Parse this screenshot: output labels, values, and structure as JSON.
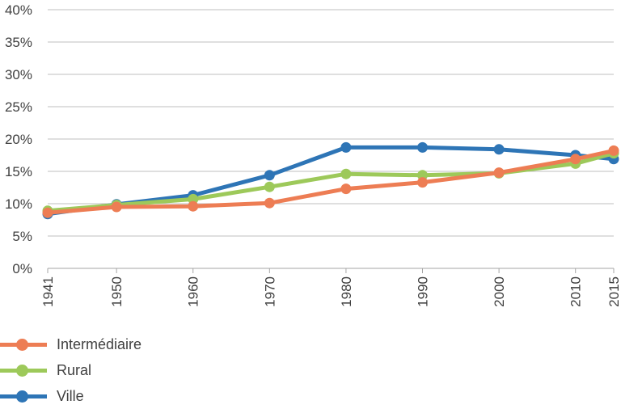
{
  "chart_data": {
    "type": "line",
    "x": [
      "1941",
      "1950",
      "1960",
      "1970",
      "1980",
      "1990",
      "2000",
      "2010",
      "2015"
    ],
    "x_numeric": [
      1941,
      1950,
      1960,
      1970,
      1980,
      1990,
      2000,
      2010,
      2015
    ],
    "ylim": [
      0,
      40
    ],
    "y_ticks": [
      "0%",
      "5%",
      "10%",
      "15%",
      "20%",
      "25%",
      "30%",
      "35%",
      "40%"
    ],
    "grid": true,
    "legend_position": "bottom-left",
    "series": [
      {
        "name": "Ville",
        "color": "#2e75b6",
        "values": [
          8.4,
          9.9,
          11.3,
          14.4,
          18.7,
          18.7,
          18.4,
          17.5,
          16.9
        ]
      },
      {
        "name": "Rural",
        "color": "#9dc95a",
        "values": [
          8.9,
          9.8,
          10.7,
          12.6,
          14.6,
          14.4,
          14.7,
          16.2,
          17.8
        ]
      },
      {
        "name": "Intermédiaire",
        "color": "#ed7d54",
        "values": [
          8.6,
          9.5,
          9.6,
          10.1,
          12.3,
          13.3,
          14.8,
          16.9,
          18.2
        ]
      }
    ],
    "legend_order": [
      "Intermédiaire",
      "Rural",
      "Ville"
    ]
  }
}
